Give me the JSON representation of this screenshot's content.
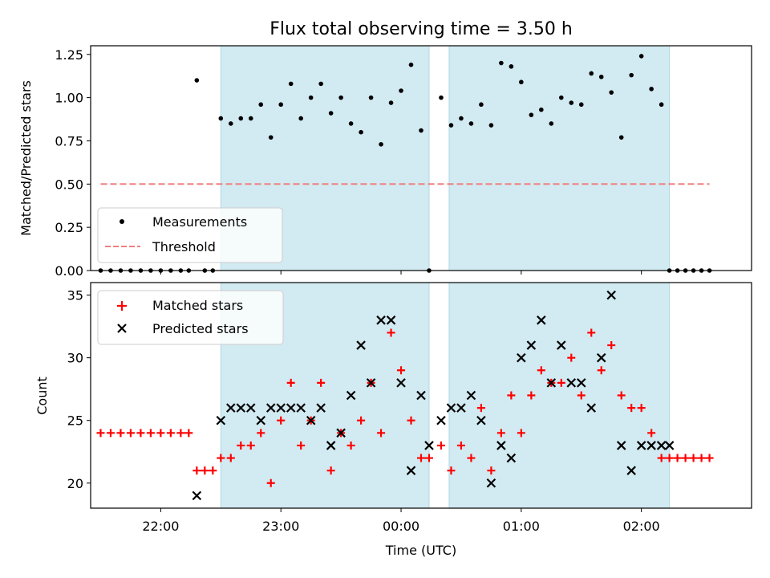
{
  "title": "Flux total observing time = 3.50 h",
  "colors": {
    "shade": "#add8e6",
    "measurements": "#000000",
    "threshold": "#f08080",
    "matched": "#ff0000",
    "predicted": "#000000"
  },
  "chart_data": [
    {
      "type": "scatter",
      "panel": "top",
      "title": "Flux total observing time = 3.50 h",
      "xlabel": "",
      "ylabel": "Matched/Predicted stars",
      "xlim": [
        "21:25",
        "02:55"
      ],
      "ylim": [
        0,
        1.3
      ],
      "yticks": [
        "0.00",
        "0.25",
        "0.50",
        "0.75",
        "1.00",
        "1.25"
      ],
      "legend": {
        "placement": "lower-left",
        "entries": [
          "Measurements",
          "Threshold"
        ]
      },
      "shaded_intervals": [
        [
          "22:30",
          "00:14"
        ],
        [
          "00:24",
          "02:14"
        ]
      ],
      "threshold": {
        "name": "Threshold",
        "value": 0.5,
        "x": [
          "21:30",
          "02:34"
        ]
      },
      "series": [
        {
          "name": "Measurements",
          "x": [
            "21:30",
            "21:35",
            "21:40",
            "21:45",
            "21:50",
            "21:55",
            "22:00",
            "22:05",
            "22:10",
            "22:14",
            "22:18",
            "22:22",
            "22:26",
            "22:30",
            "22:35",
            "22:40",
            "22:45",
            "22:50",
            "22:55",
            "23:00",
            "23:05",
            "23:10",
            "23:15",
            "23:20",
            "23:25",
            "23:30",
            "23:35",
            "23:40",
            "23:45",
            "23:50",
            "23:55",
            "24:00",
            "24:05",
            "24:10",
            "24:14",
            "24:20",
            "24:25",
            "24:30",
            "24:35",
            "24:40",
            "24:45",
            "24:50",
            "24:55",
            "25:00",
            "25:05",
            "25:10",
            "25:15",
            "25:20",
            "25:25",
            "25:30",
            "25:35",
            "25:40",
            "25:45",
            "25:50",
            "25:55",
            "26:00",
            "26:05",
            "26:10",
            "26:14",
            "26:18",
            "26:22",
            "26:26",
            "26:30",
            "26:34"
          ],
          "values": [
            0,
            0,
            0,
            0,
            0,
            0,
            0,
            0,
            0,
            0,
            1.1,
            0,
            0,
            0.88,
            0.85,
            0.88,
            0.88,
            0.96,
            0.77,
            0.96,
            1.08,
            0.88,
            1.0,
            1.08,
            0.91,
            1.0,
            0.85,
            0.8,
            1.0,
            0.73,
            0.97,
            1.04,
            1.19,
            0.81,
            0,
            1.0,
            0.84,
            0.88,
            0.85,
            0.96,
            0.84,
            1.2,
            1.18,
            1.09,
            0.9,
            0.93,
            0.85,
            1.0,
            0.97,
            0.96,
            1.14,
            1.12,
            1.03,
            0.77,
            1.13,
            1.24,
            1.05,
            0.96,
            0,
            0,
            0,
            0,
            0,
            0
          ]
        }
      ]
    },
    {
      "type": "scatter",
      "panel": "bottom",
      "xlabel": "Time (UTC)",
      "ylabel": "Count",
      "xlim": [
        "21:25",
        "02:55"
      ],
      "ylim": [
        18,
        36
      ],
      "xticks": [
        "22:00",
        "23:00",
        "00:00",
        "01:00",
        "02:00"
      ],
      "yticks": [
        "20",
        "25",
        "30",
        "35"
      ],
      "legend": {
        "placement": "upper-left",
        "entries": [
          "Matched stars",
          "Predicted stars"
        ]
      },
      "shaded_intervals": [
        [
          "22:30",
          "00:14"
        ],
        [
          "00:24",
          "02:14"
        ]
      ],
      "series": [
        {
          "name": "Matched stars",
          "marker": "+",
          "x": [
            "21:30",
            "21:35",
            "21:40",
            "21:45",
            "21:50",
            "21:55",
            "22:00",
            "22:05",
            "22:10",
            "22:14",
            "22:18",
            "22:22",
            "22:26",
            "22:30",
            "22:35",
            "22:40",
            "22:45",
            "22:50",
            "22:55",
            "23:00",
            "23:05",
            "23:10",
            "23:15",
            "23:20",
            "23:25",
            "23:30",
            "23:35",
            "23:40",
            "23:45",
            "23:50",
            "23:55",
            "24:00",
            "24:05",
            "24:10",
            "24:14",
            "24:20",
            "24:25",
            "24:30",
            "24:35",
            "24:40",
            "24:45",
            "24:50",
            "24:55",
            "25:00",
            "25:05",
            "25:10",
            "25:15",
            "25:20",
            "25:25",
            "25:30",
            "25:35",
            "25:40",
            "25:45",
            "25:50",
            "25:55",
            "26:00",
            "26:05",
            "26:10",
            "26:14",
            "26:18",
            "26:22",
            "26:26",
            "26:30",
            "26:34"
          ],
          "values": [
            24,
            24,
            24,
            24,
            24,
            24,
            24,
            24,
            24,
            24,
            21,
            21,
            21,
            22,
            22,
            23,
            23,
            24,
            20,
            25,
            28,
            23,
            25,
            28,
            21,
            24,
            23,
            25,
            28,
            24,
            32,
            29,
            25,
            22,
            22,
            23,
            21,
            23,
            22,
            26,
            21,
            24,
            27,
            24,
            27,
            29,
            28,
            28,
            30,
            27,
            32,
            29,
            31,
            27,
            26,
            26,
            24,
            22,
            22,
            22,
            22,
            22,
            22,
            22
          ]
        },
        {
          "name": "Predicted stars",
          "marker": "x",
          "x": [
            "22:18",
            "22:30",
            "22:35",
            "22:40",
            "22:45",
            "22:50",
            "22:55",
            "23:00",
            "23:05",
            "23:10",
            "23:15",
            "23:20",
            "23:25",
            "23:30",
            "23:35",
            "23:40",
            "23:45",
            "23:50",
            "23:55",
            "24:00",
            "24:05",
            "24:10",
            "24:14",
            "24:20",
            "24:25",
            "24:30",
            "24:35",
            "24:40",
            "24:45",
            "24:50",
            "24:55",
            "25:00",
            "25:05",
            "25:10",
            "25:15",
            "25:20",
            "25:25",
            "25:30",
            "25:35",
            "25:40",
            "25:45",
            "25:50",
            "25:55",
            "26:00",
            "26:05",
            "26:10",
            "26:14"
          ],
          "values": [
            19,
            25,
            26,
            26,
            26,
            25,
            26,
            26,
            26,
            26,
            25,
            26,
            23,
            24,
            27,
            31,
            28,
            33,
            33,
            28,
            21,
            27,
            23,
            25,
            26,
            26,
            27,
            25,
            20,
            23,
            22,
            30,
            31,
            33,
            28,
            31,
            28,
            28,
            26,
            30,
            35,
            23,
            21,
            23,
            23,
            23,
            23
          ]
        }
      ]
    }
  ]
}
